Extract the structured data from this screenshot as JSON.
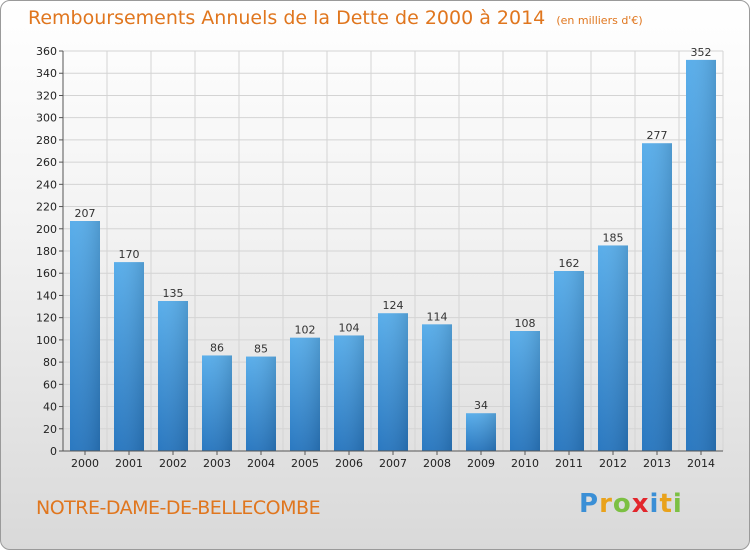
{
  "header": {
    "title": "Remboursements Annuels de la Dette de 2000 à 2014",
    "unit": "(en milliers d'€)"
  },
  "footer": {
    "city": "NOTRE-DAME-DE-BELLECOMBE",
    "logo_letters": [
      "P",
      "r",
      "o",
      "x",
      "i",
      "t",
      "i"
    ],
    "logo_colors": [
      "#3a8fd6",
      "#e9a21b",
      "#7cc043",
      "#e2262c",
      "#3a8fd6",
      "#e9a21b",
      "#7cc043"
    ]
  },
  "chart_data": {
    "type": "bar",
    "title": "Remboursements Annuels de la Dette de 2000 à 2014",
    "categories": [
      "2000",
      "2001",
      "2002",
      "2003",
      "2004",
      "2005",
      "2006",
      "2007",
      "2008",
      "2009",
      "2010",
      "2011",
      "2012",
      "2013",
      "2014"
    ],
    "values": [
      207,
      170,
      135,
      86,
      85,
      102,
      104,
      124,
      114,
      34,
      108,
      162,
      185,
      277,
      352
    ],
    "ylim": [
      0,
      360
    ],
    "ytick_step": 20,
    "grid": true,
    "bar_color": "#4a9de0"
  }
}
